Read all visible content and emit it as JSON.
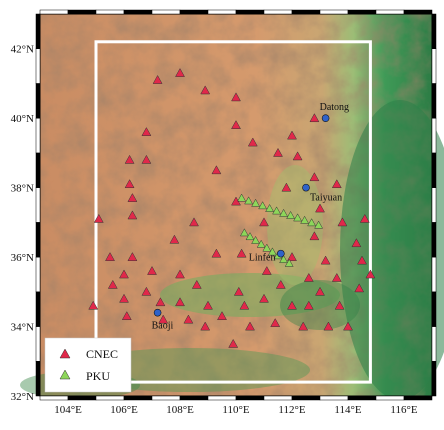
{
  "map": {
    "lon_range": [
      103,
      117
    ],
    "lat_range": [
      32,
      43
    ],
    "lon_ticks": [
      "104°E",
      "106°E",
      "108°E",
      "110°E",
      "112°E",
      "114°E",
      "116°E"
    ],
    "lat_ticks": [
      "42°N",
      "40°N",
      "38°N",
      "36°N",
      "34°N",
      "32°N"
    ],
    "study_area": {
      "lon": [
        105,
        114.8
      ],
      "lat": [
        32.4,
        42.2
      ]
    }
  },
  "cities": [
    {
      "name": "Datong",
      "lon": 113.2,
      "lat": 40.0
    },
    {
      "name": "Taiyuan",
      "lon": 112.5,
      "lat": 38.0
    },
    {
      "name": "Linfen",
      "lon": 111.6,
      "lat": 36.1
    },
    {
      "name": "Baoji",
      "lon": 107.2,
      "lat": 34.4
    }
  ],
  "cnec_stations": [
    [
      108.0,
      41.3
    ],
    [
      107.2,
      41.1
    ],
    [
      108.9,
      40.8
    ],
    [
      110.0,
      40.6
    ],
    [
      112.8,
      40.0
    ],
    [
      110.0,
      39.8
    ],
    [
      106.8,
      39.6
    ],
    [
      112.0,
      39.5
    ],
    [
      110.6,
      39.3
    ],
    [
      111.5,
      39.0
    ],
    [
      106.2,
      38.8
    ],
    [
      106.8,
      38.8
    ],
    [
      112.2,
      38.9
    ],
    [
      109.3,
      38.5
    ],
    [
      112.8,
      38.3
    ],
    [
      106.2,
      38.1
    ],
    [
      111.8,
      38.0
    ],
    [
      113.6,
      38.1
    ],
    [
      106.3,
      37.7
    ],
    [
      110.0,
      37.6
    ],
    [
      113.0,
      37.4
    ],
    [
      106.3,
      37.2
    ],
    [
      105.1,
      37.1
    ],
    [
      108.5,
      37.0
    ],
    [
      111.0,
      37.0
    ],
    [
      113.8,
      37.0
    ],
    [
      114.6,
      37.1
    ],
    [
      107.8,
      36.5
    ],
    [
      112.8,
      36.6
    ],
    [
      114.3,
      36.4
    ],
    [
      105.5,
      36.0
    ],
    [
      106.3,
      36.0
    ],
    [
      109.3,
      36.1
    ],
    [
      110.2,
      36.1
    ],
    [
      112.0,
      36.0
    ],
    [
      113.2,
      35.9
    ],
    [
      114.5,
      35.9
    ],
    [
      106.0,
      35.5
    ],
    [
      107.0,
      35.6
    ],
    [
      108.0,
      35.5
    ],
    [
      111.1,
      35.6
    ],
    [
      112.6,
      35.4
    ],
    [
      113.6,
      35.4
    ],
    [
      114.8,
      35.5
    ],
    [
      105.6,
      35.2
    ],
    [
      106.8,
      35.0
    ],
    [
      108.6,
      35.2
    ],
    [
      110.1,
      35.0
    ],
    [
      111.6,
      35.2
    ],
    [
      113.0,
      35.0
    ],
    [
      114.4,
      35.1
    ],
    [
      104.9,
      34.6
    ],
    [
      106.0,
      34.8
    ],
    [
      107.3,
      34.7
    ],
    [
      108.0,
      34.7
    ],
    [
      109.0,
      34.6
    ],
    [
      110.3,
      34.6
    ],
    [
      111.0,
      34.8
    ],
    [
      112.0,
      34.6
    ],
    [
      112.6,
      34.6
    ],
    [
      113.7,
      34.6
    ],
    [
      106.1,
      34.3
    ],
    [
      107.4,
      34.2
    ],
    [
      108.3,
      34.2
    ],
    [
      109.5,
      34.3
    ],
    [
      110.5,
      34.0
    ],
    [
      111.4,
      34.1
    ],
    [
      112.4,
      34.0
    ],
    [
      113.3,
      34.0
    ],
    [
      114.0,
      34.0
    ],
    [
      108.9,
      34.0
    ],
    [
      109.9,
      33.5
    ]
  ],
  "pku_stations": [
    [
      110.2,
      37.7
    ],
    [
      110.45,
      37.62
    ],
    [
      110.7,
      37.55
    ],
    [
      110.95,
      37.48
    ],
    [
      111.2,
      37.4
    ],
    [
      111.45,
      37.33
    ],
    [
      111.7,
      37.26
    ],
    [
      111.95,
      37.2
    ],
    [
      112.2,
      37.13
    ],
    [
      112.45,
      37.06
    ],
    [
      112.7,
      36.99
    ],
    [
      112.95,
      36.92
    ],
    [
      110.3,
      36.7
    ],
    [
      110.5,
      36.59
    ],
    [
      110.7,
      36.48
    ],
    [
      110.9,
      36.37
    ],
    [
      111.1,
      36.26
    ],
    [
      111.3,
      36.15
    ],
    [
      111.5,
      36.04
    ],
    [
      111.7,
      35.93
    ],
    [
      111.9,
      35.82
    ]
  ],
  "legend": {
    "cnec_label": "CNEC",
    "pku_label": "PKU",
    "cnec_color": "#e0284a",
    "pku_color": "#8dd65a"
  }
}
